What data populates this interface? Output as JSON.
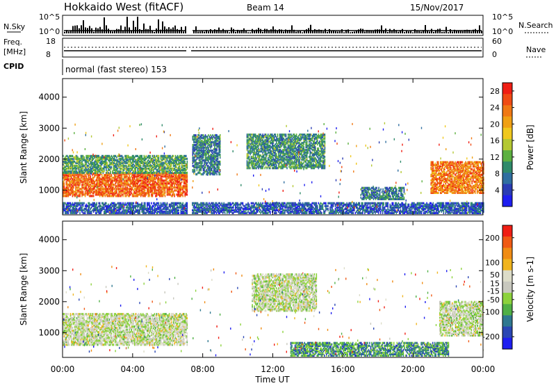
{
  "header": {
    "station": "Hokkaido West (fitACF)",
    "beam": "Beam 14",
    "date": "15/Nov/2017"
  },
  "panels": {
    "nsky_label": "N.Sky",
    "nsearch_label": "N.Search",
    "freq_label_1": "Freq.",
    "freq_label_2": "[MHz]",
    "nave_label": "Nave",
    "cpid_label": "CPID",
    "cpid_value": "normal (fast stereo) 153",
    "noise_ticks_left": [
      "10^5",
      "10^0"
    ],
    "noise_ticks_right": [
      "10^5",
      "10^0"
    ],
    "freq_ticks_left": [
      "18",
      "8"
    ],
    "freq_ticks_right": [
      "60",
      "0"
    ]
  },
  "colors": {
    "power": [
      "#1e1ef0",
      "#2a3cb4",
      "#2f6ea0",
      "#2f8a6a",
      "#5cb040",
      "#b4c832",
      "#f0c81e",
      "#f0a014",
      "#f07814",
      "#f04b14",
      "#f01e14"
    ],
    "velocity": [
      "#1e1ef0",
      "#2a46b4",
      "#2f7890",
      "#50b046",
      "#8cd23c",
      "#c8c8be",
      "#dcdcc8",
      "#f0b41e",
      "#f08c14",
      "#f05a14",
      "#f01e14"
    ]
  },
  "chart_data": [
    {
      "type": "heatmap",
      "ylabel": "Slant Range [km]",
      "xlabel": "",
      "x_ticks": [
        "00:00",
        "04:00",
        "08:00",
        "12:00",
        "16:00",
        "20:00",
        "00:00"
      ],
      "y_ticks": [
        "1000",
        "2000",
        "3000",
        "4000"
      ],
      "ylim": [
        200,
        4600
      ],
      "colorbar": {
        "label": "Power [dB]",
        "ticks": [
          "4",
          "8",
          "12",
          "16",
          "20",
          "24",
          "28"
        ],
        "range": [
          0,
          30
        ]
      },
      "data_gap_ut": [
        7.1,
        7.35
      ],
      "regions": [
        {
          "t0": 0.0,
          "t1": 7.1,
          "r0": 800,
          "r1": 1550,
          "level": 0.85
        },
        {
          "t0": 0.0,
          "t1": 7.1,
          "r0": 1550,
          "r1": 2100,
          "level": 0.35
        },
        {
          "t0": 7.4,
          "t1": 9.0,
          "r0": 1500,
          "r1": 2800,
          "level": 0.25
        },
        {
          "t0": 10.5,
          "t1": 15.0,
          "r0": 1700,
          "r1": 2800,
          "level": 0.3
        },
        {
          "t0": 17.0,
          "t1": 19.5,
          "r0": 700,
          "r1": 1100,
          "level": 0.25
        },
        {
          "t0": 21.0,
          "t1": 24.0,
          "r0": 900,
          "r1": 1900,
          "level": 0.8
        },
        {
          "t0": 0.0,
          "t1": 24.0,
          "r0": 250,
          "r1": 600,
          "level": 0.15
        }
      ]
    },
    {
      "type": "heatmap",
      "ylabel": "Slant Range [km]",
      "xlabel": "Time UT",
      "x_ticks": [
        "00:00",
        "04:00",
        "08:00",
        "12:00",
        "16:00",
        "20:00",
        "00:00"
      ],
      "y_ticks": [
        "1000",
        "2000",
        "3000",
        "4000"
      ],
      "ylim": [
        200,
        4600
      ],
      "colorbar": {
        "label": "Velocity [m s-1]",
        "ticks": [
          "200",
          "100",
          "50",
          "15",
          "-15",
          "-50",
          "-100",
          "-200"
        ],
        "range": [
          -250,
          250
        ]
      },
      "data_gap_ut": [
        7.1,
        7.35
      ],
      "regions": [
        {
          "t0": 0.0,
          "t1": 7.1,
          "r0": 600,
          "r1": 1600,
          "level": 0.5
        },
        {
          "t0": 10.8,
          "t1": 14.5,
          "r0": 1700,
          "r1": 2900,
          "level": 0.5
        },
        {
          "t0": 13.0,
          "t1": 22.0,
          "r0": 250,
          "r1": 700,
          "level": 0.25
        },
        {
          "t0": 21.5,
          "t1": 24.0,
          "r0": 900,
          "r1": 2000,
          "level": 0.5
        }
      ]
    }
  ]
}
